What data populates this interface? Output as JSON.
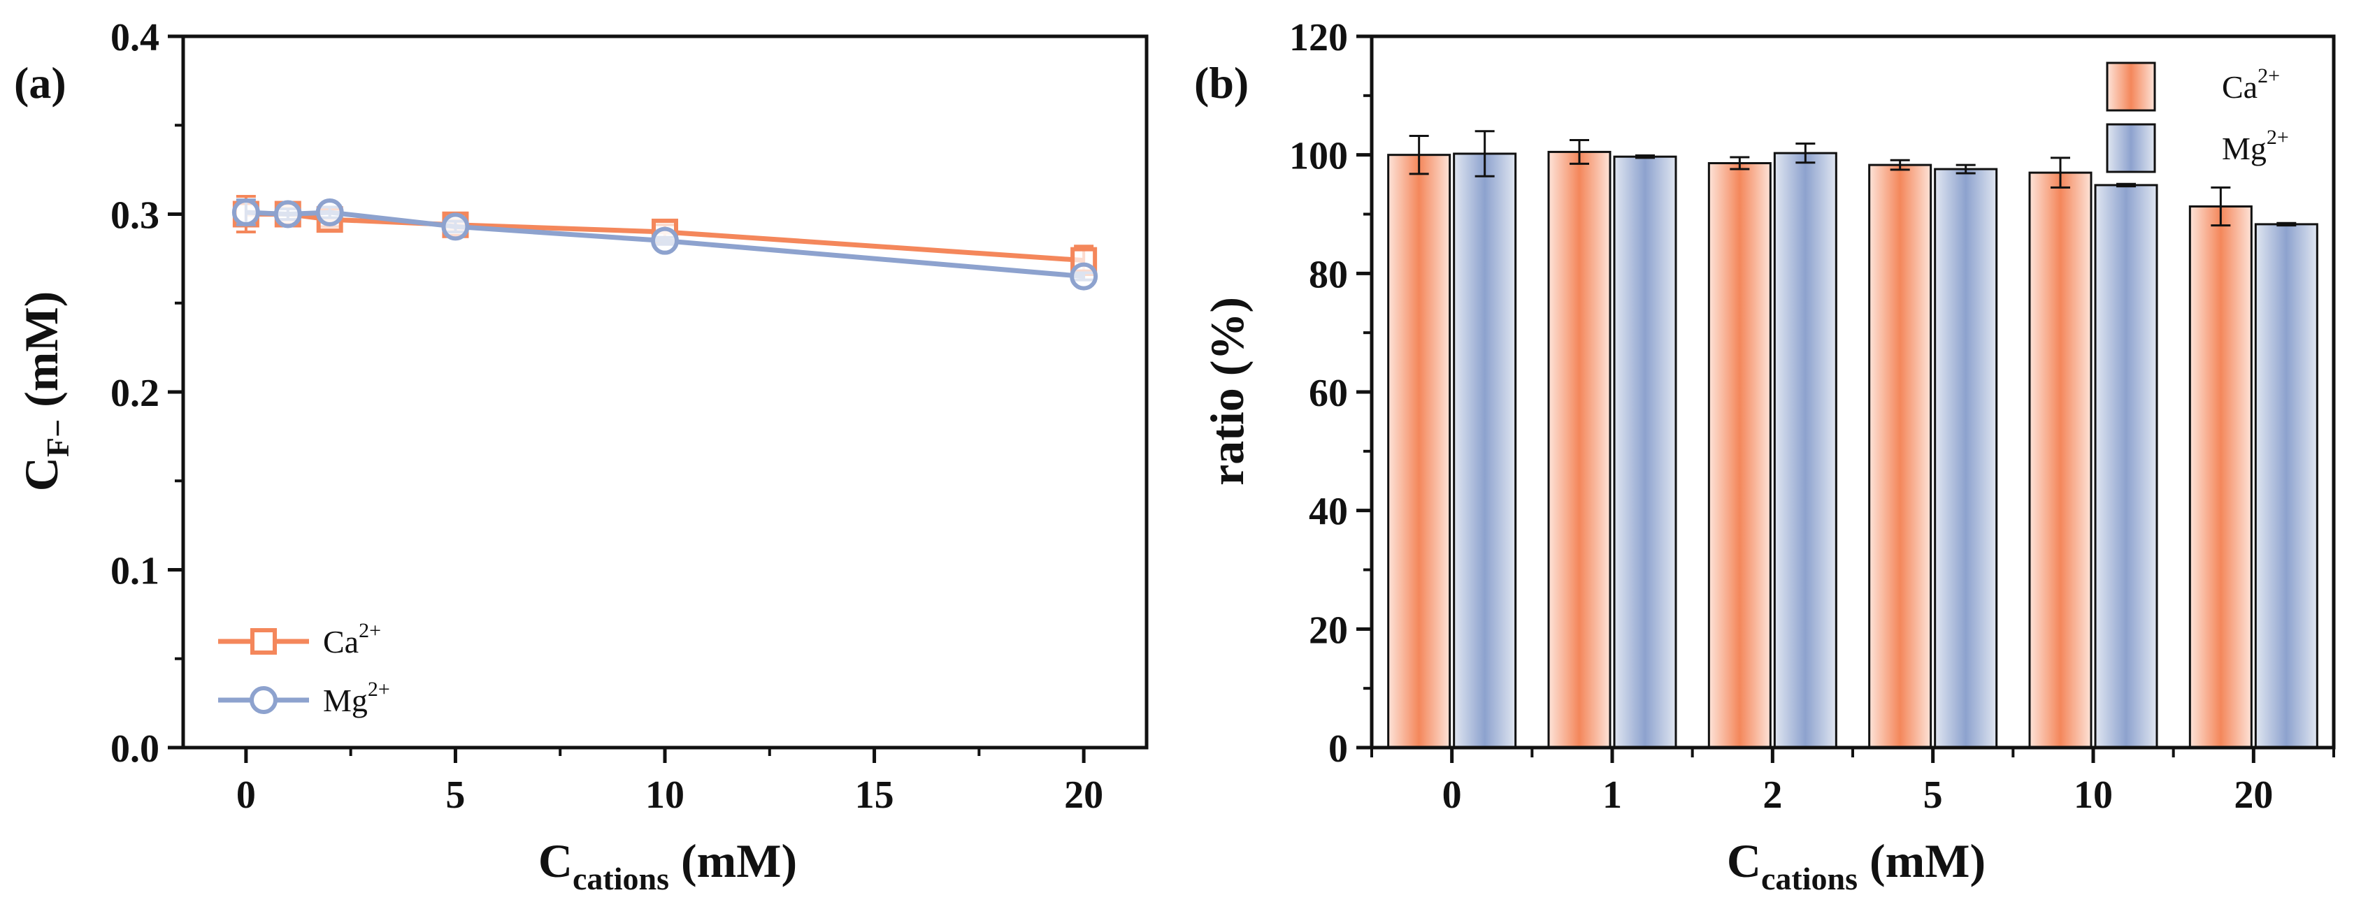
{
  "colors": {
    "ca": "#F4875B",
    "ca_light": "#FDE3D8",
    "mg": "#8DA2CE",
    "mg_light": "#E0E6F1",
    "axis": "#111111"
  },
  "panel_a": {
    "tag": "(a)"
  },
  "panel_b": {
    "tag": "(b)"
  },
  "legend": {
    "ca_base": "Ca",
    "ca_sup": "2+",
    "mg_base": "Mg",
    "mg_sup": "2+"
  },
  "chart_data": [
    {
      "type": "line",
      "panel": "(a)",
      "ylabel_main": "C",
      "ylabel_sub": "F−",
      "ylabel_unit": " (mM)",
      "xlabel_main": "C",
      "xlabel_sub": "cations",
      "xlabel_unit": " (mM)",
      "xlim": [
        -1.5,
        21.5
      ],
      "ylim": [
        0.0,
        0.4
      ],
      "xticks": [
        0,
        5,
        10,
        15,
        20
      ],
      "yticks": [
        0.0,
        0.1,
        0.2,
        0.3,
        0.4
      ],
      "xtick_labels": [
        "0",
        "5",
        "10",
        "15",
        "20"
      ],
      "ytick_labels": [
        "0.0",
        "0.1",
        "0.2",
        "0.3",
        "0.4"
      ],
      "legend_position": "lower-left",
      "series": [
        {
          "name": "Ca2+",
          "marker": "square",
          "x": [
            0,
            1,
            2,
            5,
            10,
            20
          ],
          "y": [
            0.3,
            0.3,
            0.297,
            0.294,
            0.29,
            0.274
          ],
          "err": [
            0.01,
            0.004,
            0.004,
            0.003,
            0.004,
            0.008
          ]
        },
        {
          "name": "Mg2+",
          "marker": "circle",
          "x": [
            0,
            1,
            2,
            5,
            10,
            20
          ],
          "y": [
            0.301,
            0.3,
            0.301,
            0.293,
            0.285,
            0.265
          ],
          "err": [
            0.007,
            0.003,
            0.003,
            0.003,
            0.002,
            0.002
          ]
        }
      ]
    },
    {
      "type": "bar",
      "panel": "(b)",
      "ylabel": "ratio (%)",
      "xlabel_main": "C",
      "xlabel_sub": "cations",
      "xlabel_unit": " (mM)",
      "ylim": [
        0,
        120
      ],
      "yticks": [
        0,
        20,
        40,
        60,
        80,
        100,
        120
      ],
      "ytick_labels": [
        "0",
        "20",
        "40",
        "60",
        "80",
        "100",
        "120"
      ],
      "categories": [
        "0",
        "1",
        "2",
        "5",
        "10",
        "20"
      ],
      "legend_position": "top-right",
      "series": [
        {
          "name": "Ca2+",
          "values": [
            100.0,
            100.5,
            98.6,
            98.3,
            97.0,
            91.3
          ],
          "err": [
            3.2,
            2.0,
            1.0,
            0.8,
            2.5,
            3.2
          ]
        },
        {
          "name": "Mg2+",
          "values": [
            100.2,
            99.7,
            100.3,
            97.6,
            94.9,
            88.3
          ],
          "err": [
            3.8,
            0.2,
            1.6,
            0.7,
            0.2,
            0.2
          ]
        }
      ]
    }
  ]
}
